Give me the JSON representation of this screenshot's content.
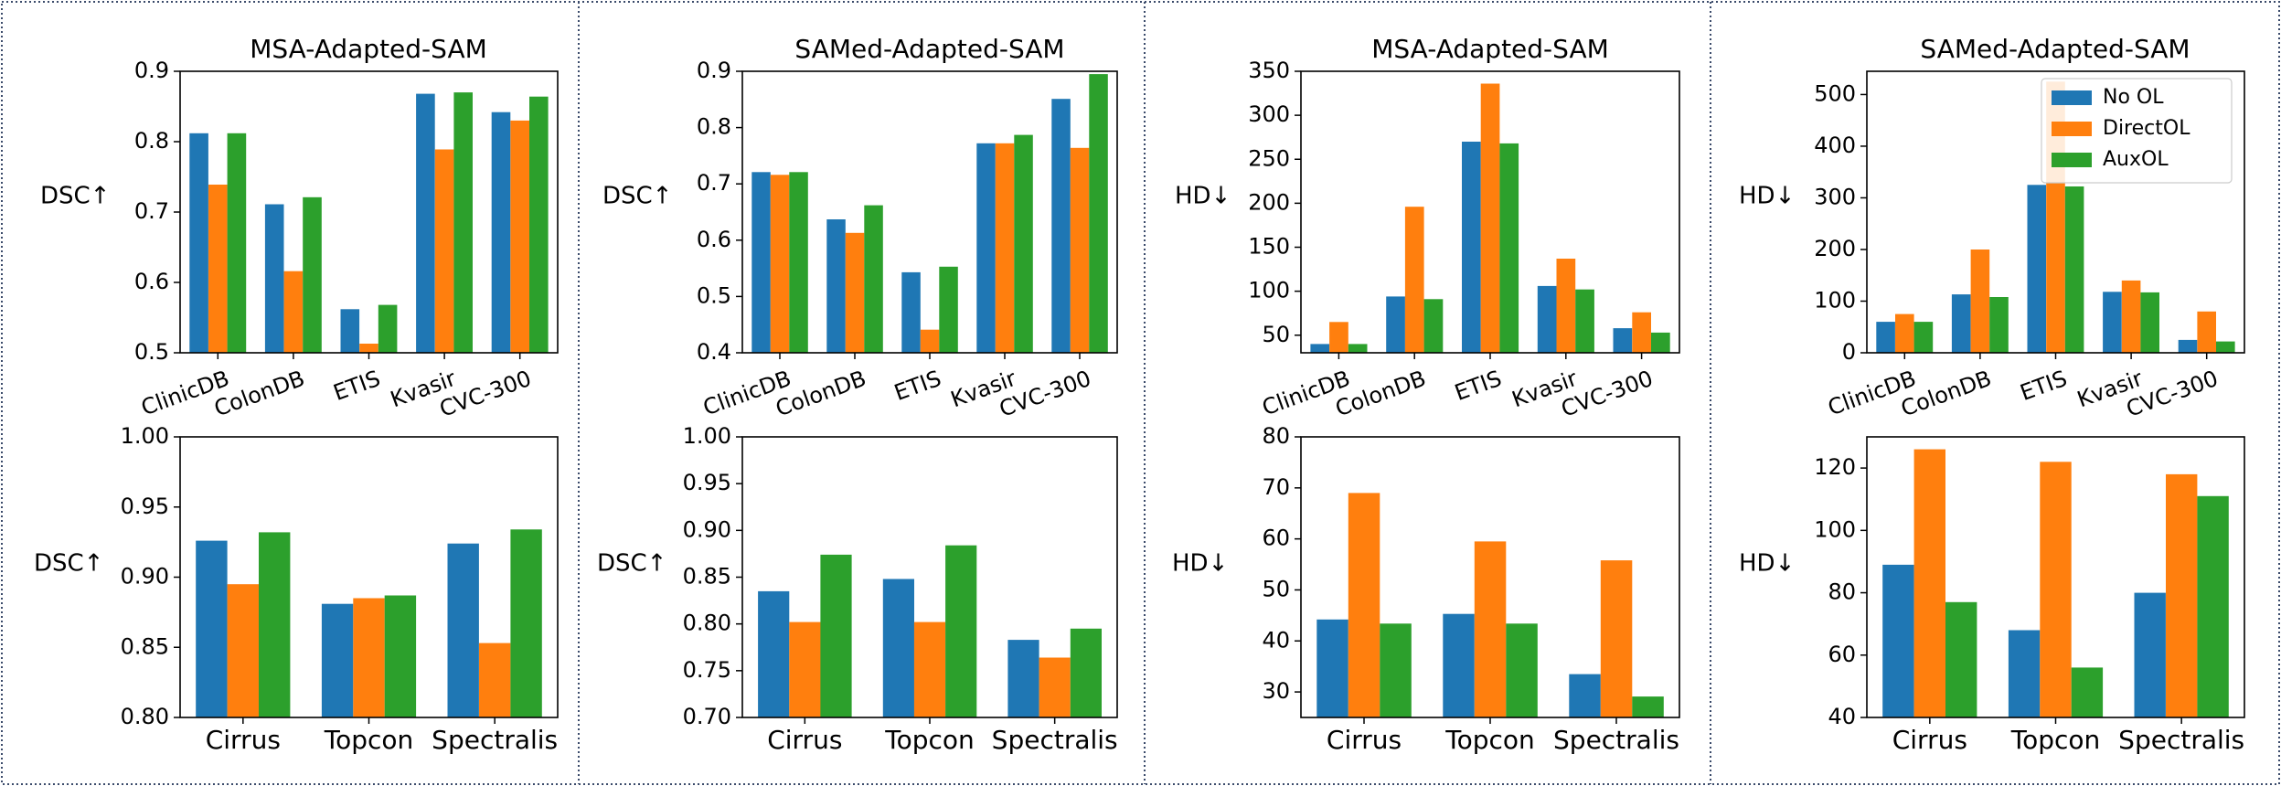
{
  "colors": {
    "no_ol": "#1f77b4",
    "direct_ol": "#ff7f0e",
    "aux_ol": "#2ca02c"
  },
  "legend": [
    "No OL",
    "DirectOL",
    "AuxOL"
  ],
  "chart_data": [
    {
      "id": "p1",
      "type": "bar",
      "title": "MSA-Adapted-SAM",
      "ylabel": "DSC↑",
      "categories": [
        "ClinicDB",
        "ColonDB",
        "ETIS",
        "Kvasir",
        "CVC-300"
      ],
      "ylim": [
        0.5,
        0.9
      ],
      "yticks": [
        "0.5",
        "0.6",
        "0.7",
        "0.8",
        "0.9"
      ],
      "series": [
        {
          "name": "No OL",
          "values": [
            0.812,
            0.711,
            0.562,
            0.868,
            0.842
          ]
        },
        {
          "name": "DirectOL",
          "values": [
            0.739,
            0.616,
            0.513,
            0.789,
            0.83
          ]
        },
        {
          "name": "AuxOL",
          "values": [
            0.812,
            0.721,
            0.568,
            0.87,
            0.864
          ]
        }
      ]
    },
    {
      "id": "p2",
      "type": "bar",
      "title": "SAMed-Adapted-SAM",
      "ylabel": "DSC↑",
      "categories": [
        "ClinicDB",
        "ColonDB",
        "ETIS",
        "Kvasir",
        "CVC-300"
      ],
      "ylim": [
        0.4,
        0.9
      ],
      "yticks": [
        "0.4",
        "0.5",
        "0.6",
        "0.7",
        "0.8",
        "0.9"
      ],
      "series": [
        {
          "name": "No OL",
          "values": [
            0.721,
            0.637,
            0.543,
            0.772,
            0.851
          ]
        },
        {
          "name": "DirectOL",
          "values": [
            0.716,
            0.613,
            0.441,
            0.772,
            0.764
          ]
        },
        {
          "name": "AuxOL",
          "values": [
            0.721,
            0.662,
            0.553,
            0.787,
            0.895
          ]
        }
      ]
    },
    {
      "id": "p3",
      "type": "bar",
      "title": "MSA-Adapted-SAM",
      "ylabel": "HD↓",
      "categories": [
        "ClinicDB",
        "ColonDB",
        "ETIS",
        "Kvasir",
        "CVC-300"
      ],
      "ylim": [
        30,
        350
      ],
      "yticks": [
        "50",
        "100",
        "150",
        "200",
        "250",
        "300",
        "350"
      ],
      "series": [
        {
          "name": "No OL",
          "values": [
            40,
            94,
            270,
            106,
            58
          ]
        },
        {
          "name": "DirectOL",
          "values": [
            65,
            196,
            336,
            137,
            76
          ]
        },
        {
          "name": "AuxOL",
          "values": [
            40,
            91,
            268,
            102,
            53
          ]
        }
      ]
    },
    {
      "id": "p4",
      "type": "bar",
      "title": "SAMed-Adapted-SAM",
      "ylabel": "HD↓",
      "categories": [
        "ClinicDB",
        "ColonDB",
        "ETIS",
        "Kvasir",
        "CVC-300"
      ],
      "ylim": [
        0,
        545
      ],
      "yticks": [
        "0",
        "100",
        "200",
        "300",
        "400",
        "500"
      ],
      "series": [
        {
          "name": "No OL",
          "values": [
            60,
            113,
            325,
            118,
            25
          ]
        },
        {
          "name": "DirectOL",
          "values": [
            75,
            200,
            525,
            140,
            80
          ]
        },
        {
          "name": "AuxOL",
          "values": [
            60,
            108,
            322,
            117,
            22
          ]
        }
      ]
    },
    {
      "id": "p5",
      "type": "bar",
      "title": "",
      "ylabel": "DSC↑",
      "categories": [
        "Cirrus",
        "Topcon",
        "Spectralis"
      ],
      "ylim": [
        0.8,
        1.0
      ],
      "yticks": [
        "0.80",
        "0.85",
        "0.90",
        "0.95",
        "1.00"
      ],
      "series": [
        {
          "name": "No OL",
          "values": [
            0.926,
            0.881,
            0.924
          ]
        },
        {
          "name": "DirectOL",
          "values": [
            0.895,
            0.885,
            0.853
          ]
        },
        {
          "name": "AuxOL",
          "values": [
            0.932,
            0.887,
            0.934
          ]
        }
      ]
    },
    {
      "id": "p6",
      "type": "bar",
      "title": "",
      "ylabel": "DSC↑",
      "categories": [
        "Cirrus",
        "Topcon",
        "Spectralis"
      ],
      "ylim": [
        0.7,
        1.0
      ],
      "yticks": [
        "0.70",
        "0.75",
        "0.80",
        "0.85",
        "0.90",
        "0.95",
        "1.00"
      ],
      "series": [
        {
          "name": "No OL",
          "values": [
            0.835,
            0.848,
            0.783
          ]
        },
        {
          "name": "DirectOL",
          "values": [
            0.802,
            0.802,
            0.764
          ]
        },
        {
          "name": "AuxOL",
          "values": [
            0.874,
            0.884,
            0.795
          ]
        }
      ]
    },
    {
      "id": "p7",
      "type": "bar",
      "title": "",
      "ylabel": "HD↓",
      "categories": [
        "Cirrus",
        "Topcon",
        "Spectralis"
      ],
      "ylim": [
        25,
        80
      ],
      "yticks": [
        "30",
        "40",
        "50",
        "60",
        "70",
        "80"
      ],
      "series": [
        {
          "name": "No OL",
          "values": [
            44.2,
            45.3,
            33.5
          ]
        },
        {
          "name": "DirectOL",
          "values": [
            69,
            59.5,
            55.8
          ]
        },
        {
          "name": "AuxOL",
          "values": [
            43.4,
            43.4,
            29.1
          ]
        }
      ]
    },
    {
      "id": "p8",
      "type": "bar",
      "title": "",
      "ylabel": "HD↓",
      "categories": [
        "Cirrus",
        "Topcon",
        "Spectralis"
      ],
      "ylim": [
        40,
        130
      ],
      "yticks": [
        "40",
        "60",
        "80",
        "100",
        "120"
      ],
      "series": [
        {
          "name": "No OL",
          "values": [
            89,
            68,
            80
          ]
        },
        {
          "name": "DirectOL",
          "values": [
            126,
            122,
            118
          ]
        },
        {
          "name": "AuxOL",
          "values": [
            77,
            56,
            111
          ]
        }
      ]
    }
  ]
}
